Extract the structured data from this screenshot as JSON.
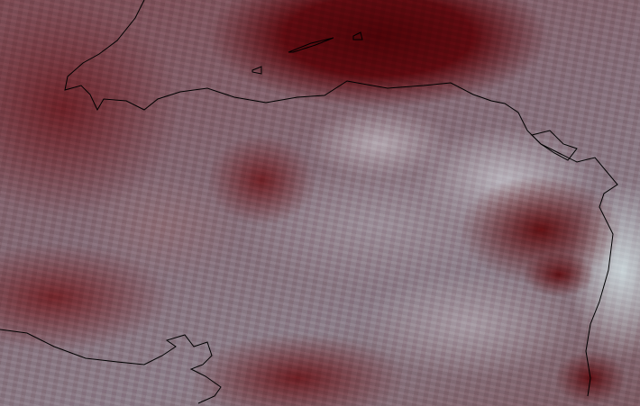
{
  "image": {
    "kind": "satellite-imagery",
    "overlay": "coastlines",
    "colors": {
      "dense_cloud": "#5a0b10",
      "thin_cloud": "#b8b4bc",
      "background": "#7d6f78",
      "coastline": "#000000"
    }
  }
}
